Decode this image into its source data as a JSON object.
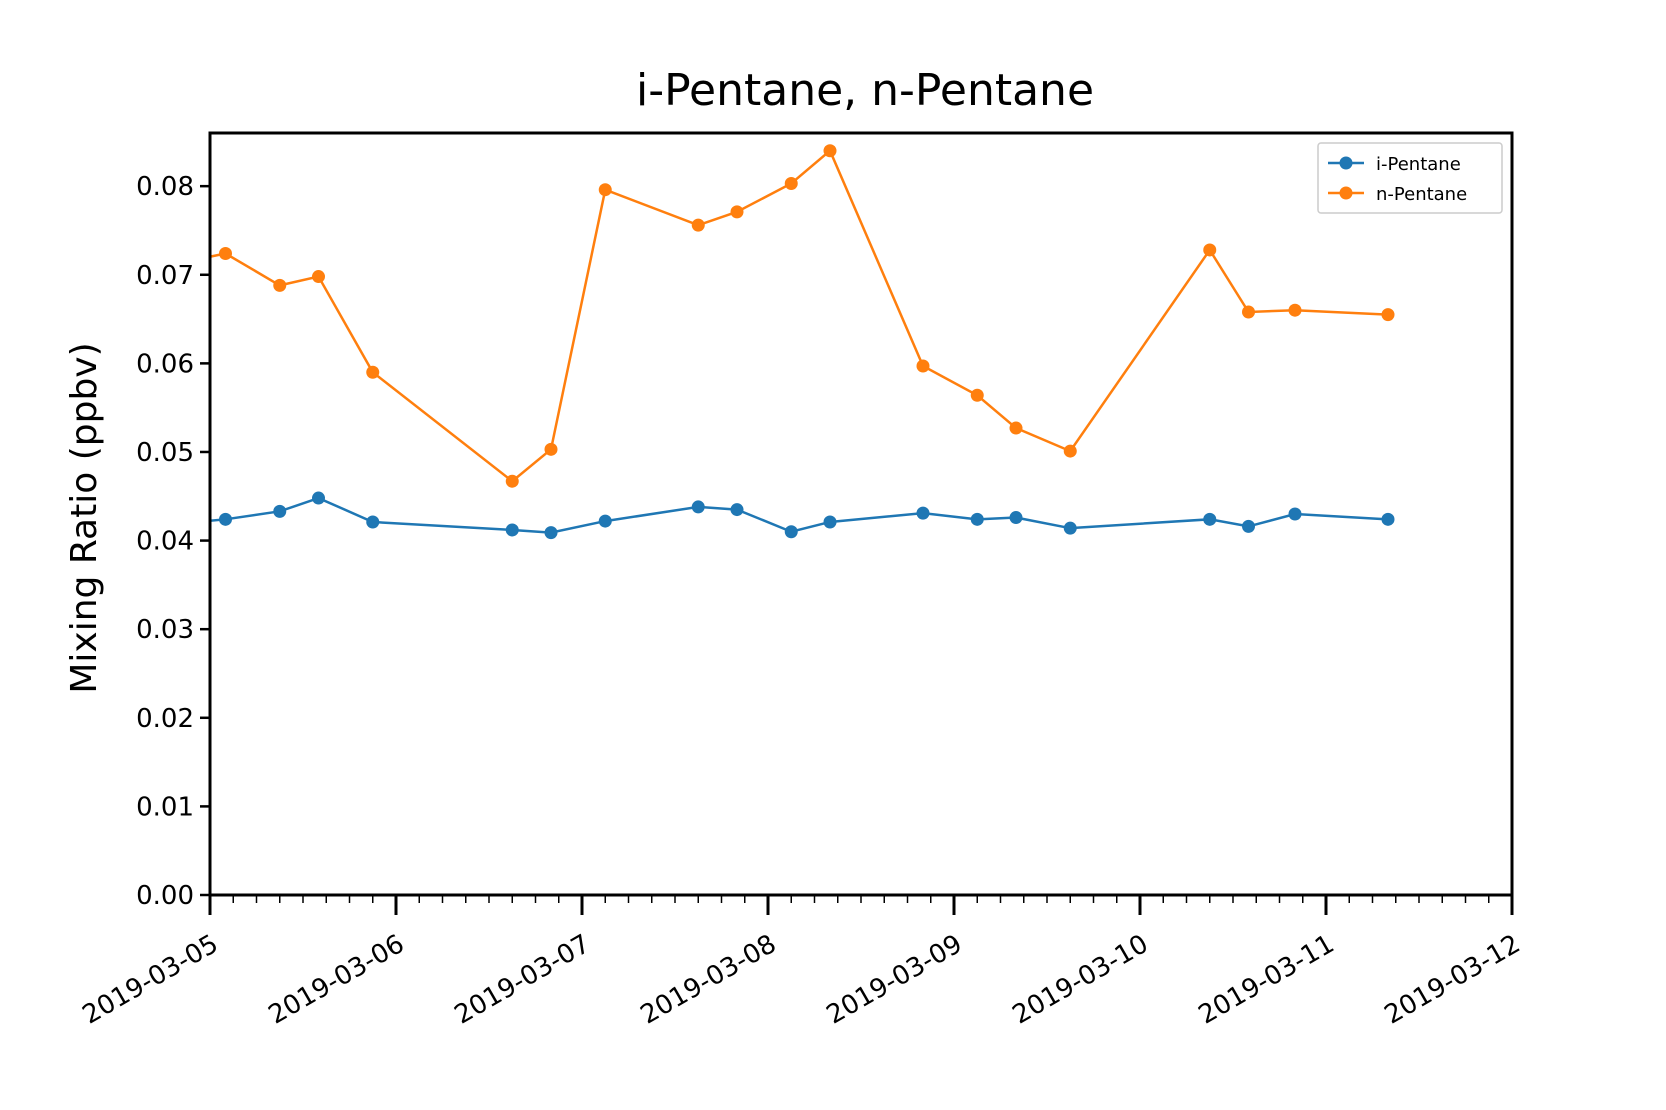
{
  "chart_data": {
    "type": "line",
    "title": "i-Pentane, n-Pentane",
    "xlabel": "",
    "ylabel": "Mixing Ratio (ppbv)",
    "xlim": [
      "2019-03-05 00:00",
      "2019-03-12 00:00"
    ],
    "ylim": [
      0.0,
      0.086
    ],
    "x_ticks": [
      "2019-03-05",
      "2019-03-06",
      "2019-03-07",
      "2019-03-08",
      "2019-03-09",
      "2019-03-10",
      "2019-03-11",
      "2019-03-12"
    ],
    "y_ticks": [
      "0.00",
      "0.01",
      "0.02",
      "0.03",
      "0.04",
      "0.05",
      "0.06",
      "0.07",
      "0.08"
    ],
    "grid": false,
    "legend_position": "top-right",
    "x": [
      "2019-03-04 21:00",
      "2019-03-05 02:00",
      "2019-03-05 09:00",
      "2019-03-05 14:00",
      "2019-03-05 21:00",
      "2019-03-06 15:00",
      "2019-03-06 20:00",
      "2019-03-07 03:00",
      "2019-03-07 15:00",
      "2019-03-07 20:00",
      "2019-03-08 03:00",
      "2019-03-08 08:00",
      "2019-03-08 20:00",
      "2019-03-09 03:00",
      "2019-03-09 08:00",
      "2019-03-09 15:00",
      "2019-03-10 09:00",
      "2019-03-10 14:00",
      "2019-03-10 20:00",
      "2019-03-11 08:00"
    ],
    "series": [
      {
        "name": "i-Pentane",
        "color": "#1f77b4",
        "values": [
          0.042,
          0.0424,
          0.0433,
          0.0448,
          0.0421,
          0.0412,
          0.0409,
          0.0422,
          0.0438,
          0.0435,
          0.041,
          0.0421,
          0.0431,
          0.0424,
          0.0426,
          0.0414,
          0.0424,
          0.0416,
          0.043,
          0.0424
        ]
      },
      {
        "name": "n-Pentane",
        "color": "#ff7f0e",
        "values": [
          0.0715,
          0.0724,
          0.0688,
          0.0698,
          0.059,
          0.0467,
          0.0503,
          0.0796,
          0.0756,
          0.0771,
          0.0803,
          0.084,
          0.0597,
          0.0564,
          0.0527,
          0.0501,
          0.0728,
          0.0658,
          0.066,
          0.0655
        ]
      }
    ]
  }
}
